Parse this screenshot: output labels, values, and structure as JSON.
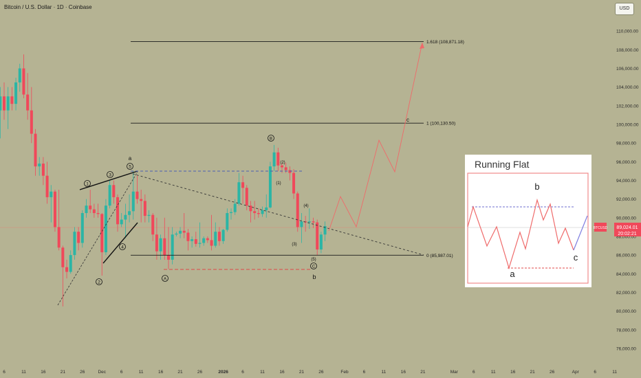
{
  "header": {
    "title": "Bitcoin / U.S. Dollar · 1D · Coinbase",
    "currency_button": "USD"
  },
  "price_label": {
    "symbol": "BTCUSD",
    "price": "89,024.01",
    "countdown": "20:02:21"
  },
  "colors": {
    "up": "#2bb5a5",
    "down": "#f0485a",
    "projection": "#ef6a6a",
    "neckline": "#4a5fb0",
    "support": "#e04848",
    "background": "#b5b393"
  },
  "chart_data": {
    "type": "candlestick",
    "title": "Bitcoin / U.S. Dollar · 1D · Coinbase",
    "yaxis": {
      "ticks": [
        "110,000.00",
        "108,000.00",
        "106,000.00",
        "104,000.00",
        "102,000.00",
        "100,000.00",
        "98,000.00",
        "96,000.00",
        "94,000.00",
        "92,000.00",
        "90,000.00",
        "88,000.00",
        "86,000.00",
        "84,000.00",
        "82,000.00",
        "80,000.00",
        "78,000.00",
        "76,000.00"
      ],
      "range": [
        74000,
        111500
      ]
    },
    "xaxis": {
      "ticks": [
        {
          "date": "2025-11-06",
          "label": "6"
        },
        {
          "date": "2025-11-11",
          "label": "11"
        },
        {
          "date": "2025-11-16",
          "label": "16"
        },
        {
          "date": "2025-11-21",
          "label": "21"
        },
        {
          "date": "2025-11-26",
          "label": "26"
        },
        {
          "date": "2025-12-01",
          "label": "Dec"
        },
        {
          "date": "2025-12-06",
          "label": "6"
        },
        {
          "date": "2025-12-11",
          "label": "11"
        },
        {
          "date": "2025-12-16",
          "label": "16"
        },
        {
          "date": "2025-12-21",
          "label": "21"
        },
        {
          "date": "2025-12-26",
          "label": "26"
        },
        {
          "date": "2026-01-01",
          "label": "2026"
        },
        {
          "date": "2026-01-06",
          "label": "6"
        },
        {
          "date": "2026-01-11",
          "label": "11"
        },
        {
          "date": "2026-01-16",
          "label": "16"
        },
        {
          "date": "2026-01-21",
          "label": "21"
        },
        {
          "date": "2026-01-26",
          "label": "26"
        },
        {
          "date": "2026-02-01",
          "label": "Feb"
        },
        {
          "date": "2026-02-06",
          "label": "6"
        },
        {
          "date": "2026-02-11",
          "label": "11"
        },
        {
          "date": "2026-02-16",
          "label": "16"
        },
        {
          "date": "2026-02-21",
          "label": "21"
        },
        {
          "date": "2026-03-01",
          "label": "Mar"
        },
        {
          "date": "2026-03-06",
          "label": "6"
        },
        {
          "date": "2026-03-11",
          "label": "11"
        },
        {
          "date": "2026-03-16",
          "label": "16"
        },
        {
          "date": "2026-03-21",
          "label": "21"
        },
        {
          "date": "2026-03-26",
          "label": "26"
        },
        {
          "date": "2026-04-01",
          "label": "Apr"
        },
        {
          "date": "2026-04-06",
          "label": "6"
        },
        {
          "date": "2026-04-11",
          "label": "11"
        }
      ]
    },
    "candles": [
      {
        "date": "2025-11-05",
        "o": 101500,
        "h": 104000,
        "l": 98500,
        "c": 103000
      },
      {
        "date": "2025-11-06",
        "o": 103000,
        "h": 104500,
        "l": 100500,
        "c": 101500
      },
      {
        "date": "2025-11-07",
        "o": 101500,
        "h": 104000,
        "l": 99500,
        "c": 103000
      },
      {
        "date": "2025-11-08",
        "o": 103000,
        "h": 104000,
        "l": 101500,
        "c": 102200
      },
      {
        "date": "2025-11-09",
        "o": 102200,
        "h": 105000,
        "l": 101500,
        "c": 104500
      },
      {
        "date": "2025-11-10",
        "o": 104500,
        "h": 106500,
        "l": 103500,
        "c": 106000
      },
      {
        "date": "2025-11-11",
        "o": 106000,
        "h": 107500,
        "l": 102800,
        "c": 103200
      },
      {
        "date": "2025-11-12",
        "o": 103200,
        "h": 105500,
        "l": 100500,
        "c": 101500
      },
      {
        "date": "2025-11-13",
        "o": 101500,
        "h": 104000,
        "l": 98000,
        "c": 99000
      },
      {
        "date": "2025-11-14",
        "o": 99000,
        "h": 99500,
        "l": 94500,
        "c": 95500
      },
      {
        "date": "2025-11-15",
        "o": 95500,
        "h": 96500,
        "l": 94500,
        "c": 95800
      },
      {
        "date": "2025-11-16",
        "o": 95800,
        "h": 96500,
        "l": 93500,
        "c": 94500
      },
      {
        "date": "2025-11-17",
        "o": 94500,
        "h": 96000,
        "l": 91500,
        "c": 92200
      },
      {
        "date": "2025-11-18",
        "o": 92200,
        "h": 93500,
        "l": 89500,
        "c": 92800
      },
      {
        "date": "2025-11-19",
        "o": 92800,
        "h": 93000,
        "l": 88500,
        "c": 89000
      },
      {
        "date": "2025-11-20",
        "o": 89000,
        "h": 93000,
        "l": 86500,
        "c": 86800
      },
      {
        "date": "2025-11-21",
        "o": 86800,
        "h": 87000,
        "l": 80500,
        "c": 84700
      },
      {
        "date": "2025-11-22",
        "o": 84700,
        "h": 85500,
        "l": 83500,
        "c": 84200
      },
      {
        "date": "2025-11-23",
        "o": 84200,
        "h": 86500,
        "l": 84000,
        "c": 86000
      },
      {
        "date": "2025-11-24",
        "o": 86000,
        "h": 89000,
        "l": 85500,
        "c": 88500
      },
      {
        "date": "2025-11-25",
        "o": 88500,
        "h": 89000,
        "l": 86500,
        "c": 87300
      },
      {
        "date": "2025-11-26",
        "o": 87300,
        "h": 90800,
        "l": 86800,
        "c": 90500
      },
      {
        "date": "2025-11-27",
        "o": 90500,
        "h": 92000,
        "l": 90000,
        "c": 91300
      },
      {
        "date": "2025-11-28",
        "o": 91300,
        "h": 93000,
        "l": 90500,
        "c": 90900
      },
      {
        "date": "2025-11-29",
        "o": 90900,
        "h": 91500,
        "l": 90000,
        "c": 90500
      },
      {
        "date": "2025-11-30",
        "o": 90500,
        "h": 91500,
        "l": 90000,
        "c": 90400
      },
      {
        "date": "2025-12-01",
        "o": 90400,
        "h": 90500,
        "l": 83800,
        "c": 86300
      },
      {
        "date": "2025-12-02",
        "o": 86300,
        "h": 92000,
        "l": 86000,
        "c": 91300
      },
      {
        "date": "2025-12-03",
        "o": 91300,
        "h": 94000,
        "l": 91000,
        "c": 93500
      },
      {
        "date": "2025-12-04",
        "o": 93500,
        "h": 94000,
        "l": 91500,
        "c": 92200
      },
      {
        "date": "2025-12-05",
        "o": 92200,
        "h": 92500,
        "l": 88500,
        "c": 89300
      },
      {
        "date": "2025-12-06",
        "o": 89300,
        "h": 90500,
        "l": 89000,
        "c": 89800
      },
      {
        "date": "2025-12-07",
        "o": 89800,
        "h": 91500,
        "l": 87800,
        "c": 90300
      },
      {
        "date": "2025-12-08",
        "o": 90300,
        "h": 92500,
        "l": 89500,
        "c": 90700
      },
      {
        "date": "2025-12-09",
        "o": 90700,
        "h": 95000,
        "l": 89800,
        "c": 92800
      },
      {
        "date": "2025-12-10",
        "o": 92800,
        "h": 94500,
        "l": 91500,
        "c": 92000
      },
      {
        "date": "2025-12-11",
        "o": 92000,
        "h": 93000,
        "l": 89500,
        "c": 91800
      },
      {
        "date": "2025-12-12",
        "o": 91800,
        "h": 92500,
        "l": 89500,
        "c": 90200
      },
      {
        "date": "2025-12-13",
        "o": 90200,
        "h": 90800,
        "l": 89500,
        "c": 90300
      },
      {
        "date": "2025-12-14",
        "o": 90300,
        "h": 90500,
        "l": 87500,
        "c": 88200
      },
      {
        "date": "2025-12-15",
        "o": 88200,
        "h": 90000,
        "l": 85500,
        "c": 86400
      },
      {
        "date": "2025-12-16",
        "o": 86400,
        "h": 88200,
        "l": 85500,
        "c": 87800
      },
      {
        "date": "2025-12-17",
        "o": 87800,
        "h": 90000,
        "l": 85500,
        "c": 86000
      },
      {
        "date": "2025-12-18",
        "o": 86000,
        "h": 89000,
        "l": 84500,
        "c": 85500
      },
      {
        "date": "2025-12-19",
        "o": 85500,
        "h": 89000,
        "l": 85000,
        "c": 88200
      },
      {
        "date": "2025-12-20",
        "o": 88200,
        "h": 88500,
        "l": 88000,
        "c": 88300
      },
      {
        "date": "2025-12-21",
        "o": 88300,
        "h": 89000,
        "l": 87800,
        "c": 88600
      },
      {
        "date": "2025-12-22",
        "o": 88600,
        "h": 90500,
        "l": 87800,
        "c": 88400
      },
      {
        "date": "2025-12-23",
        "o": 88400,
        "h": 88800,
        "l": 86500,
        "c": 87500
      },
      {
        "date": "2025-12-24",
        "o": 87500,
        "h": 88000,
        "l": 86800,
        "c": 87700
      },
      {
        "date": "2025-12-25",
        "o": 87700,
        "h": 88500,
        "l": 86900,
        "c": 87200
      },
      {
        "date": "2025-12-26",
        "o": 87200,
        "h": 89500,
        "l": 86800,
        "c": 87300
      },
      {
        "date": "2025-12-27",
        "o": 87300,
        "h": 88000,
        "l": 87000,
        "c": 87800
      },
      {
        "date": "2025-12-28",
        "o": 87800,
        "h": 88000,
        "l": 87300,
        "c": 87600
      },
      {
        "date": "2025-12-29",
        "o": 87600,
        "h": 90300,
        "l": 86500,
        "c": 87000
      },
      {
        "date": "2025-12-30",
        "o": 87000,
        "h": 89500,
        "l": 86800,
        "c": 88500
      },
      {
        "date": "2025-12-31",
        "o": 88500,
        "h": 89000,
        "l": 87000,
        "c": 87500
      },
      {
        "date": "2026-01-01",
        "o": 87500,
        "h": 88800,
        "l": 87200,
        "c": 88700
      },
      {
        "date": "2026-01-02",
        "o": 88700,
        "h": 91000,
        "l": 88500,
        "c": 90500
      },
      {
        "date": "2026-01-03",
        "o": 90500,
        "h": 91000,
        "l": 89800,
        "c": 90600
      },
      {
        "date": "2026-01-04",
        "o": 90600,
        "h": 92000,
        "l": 90300,
        "c": 91500
      },
      {
        "date": "2026-01-05",
        "o": 91500,
        "h": 94800,
        "l": 91300,
        "c": 93800
      },
      {
        "date": "2026-01-06",
        "o": 93800,
        "h": 94500,
        "l": 91500,
        "c": 93200
      },
      {
        "date": "2026-01-07",
        "o": 93200,
        "h": 93500,
        "l": 90800,
        "c": 91300
      },
      {
        "date": "2026-01-08",
        "o": 91300,
        "h": 91800,
        "l": 89500,
        "c": 90700
      },
      {
        "date": "2026-01-09",
        "o": 90700,
        "h": 91800,
        "l": 89800,
        "c": 90500
      },
      {
        "date": "2026-01-10",
        "o": 90500,
        "h": 91000,
        "l": 90000,
        "c": 90400
      },
      {
        "date": "2026-01-11",
        "o": 90400,
        "h": 91200,
        "l": 90100,
        "c": 90800
      },
      {
        "date": "2026-01-12",
        "o": 90800,
        "h": 92500,
        "l": 90000,
        "c": 91100
      },
      {
        "date": "2026-01-13",
        "o": 91100,
        "h": 96000,
        "l": 91000,
        "c": 95500
      },
      {
        "date": "2026-01-14",
        "o": 95500,
        "h": 97800,
        "l": 95000,
        "c": 97000
      },
      {
        "date": "2026-01-15",
        "o": 97000,
        "h": 97500,
        "l": 95000,
        "c": 95600
      },
      {
        "date": "2026-01-16",
        "o": 95600,
        "h": 95800,
        "l": 94800,
        "c": 95400
      },
      {
        "date": "2026-01-17",
        "o": 95400,
        "h": 95900,
        "l": 94800,
        "c": 95100
      },
      {
        "date": "2026-01-18",
        "o": 95100,
        "h": 95500,
        "l": 94000,
        "c": 94800
      },
      {
        "date": "2026-01-19",
        "o": 94800,
        "h": 95200,
        "l": 92000,
        "c": 92600
      },
      {
        "date": "2026-01-20",
        "o": 92600,
        "h": 92800,
        "l": 88500,
        "c": 89000
      },
      {
        "date": "2026-01-21",
        "o": 89000,
        "h": 90500,
        "l": 87300,
        "c": 89600
      },
      {
        "date": "2026-01-22",
        "o": 89600,
        "h": 90200,
        "l": 88500,
        "c": 89500
      },
      {
        "date": "2026-01-23",
        "o": 89500,
        "h": 91000,
        "l": 88800,
        "c": 89600
      },
      {
        "date": "2026-01-24",
        "o": 89600,
        "h": 90000,
        "l": 88900,
        "c": 89500
      },
      {
        "date": "2026-01-25",
        "o": 89500,
        "h": 89800,
        "l": 86000,
        "c": 86600
      },
      {
        "date": "2026-01-26",
        "o": 86600,
        "h": 88500,
        "l": 86200,
        "c": 88200
      },
      {
        "date": "2026-01-27",
        "o": 88200,
        "h": 89600,
        "l": 87500,
        "c": 89100
      }
    ],
    "levels": [
      {
        "label": "1.618 (108,871.18)",
        "value": 108871.18
      },
      {
        "label": "1 (100,130.50)",
        "value": 100130.5
      },
      {
        "label": "0 (85,987.01)",
        "value": 85987.01
      }
    ],
    "annotations": [
      "1",
      "2",
      "3",
      "4",
      "5",
      "a",
      "A",
      "B",
      "C",
      "(1)",
      "(2)",
      "(3)",
      "(4)",
      "(5)",
      "b",
      "c"
    ],
    "inset": {
      "title": "Running Flat",
      "labels": [
        "a",
        "b",
        "c"
      ]
    }
  }
}
